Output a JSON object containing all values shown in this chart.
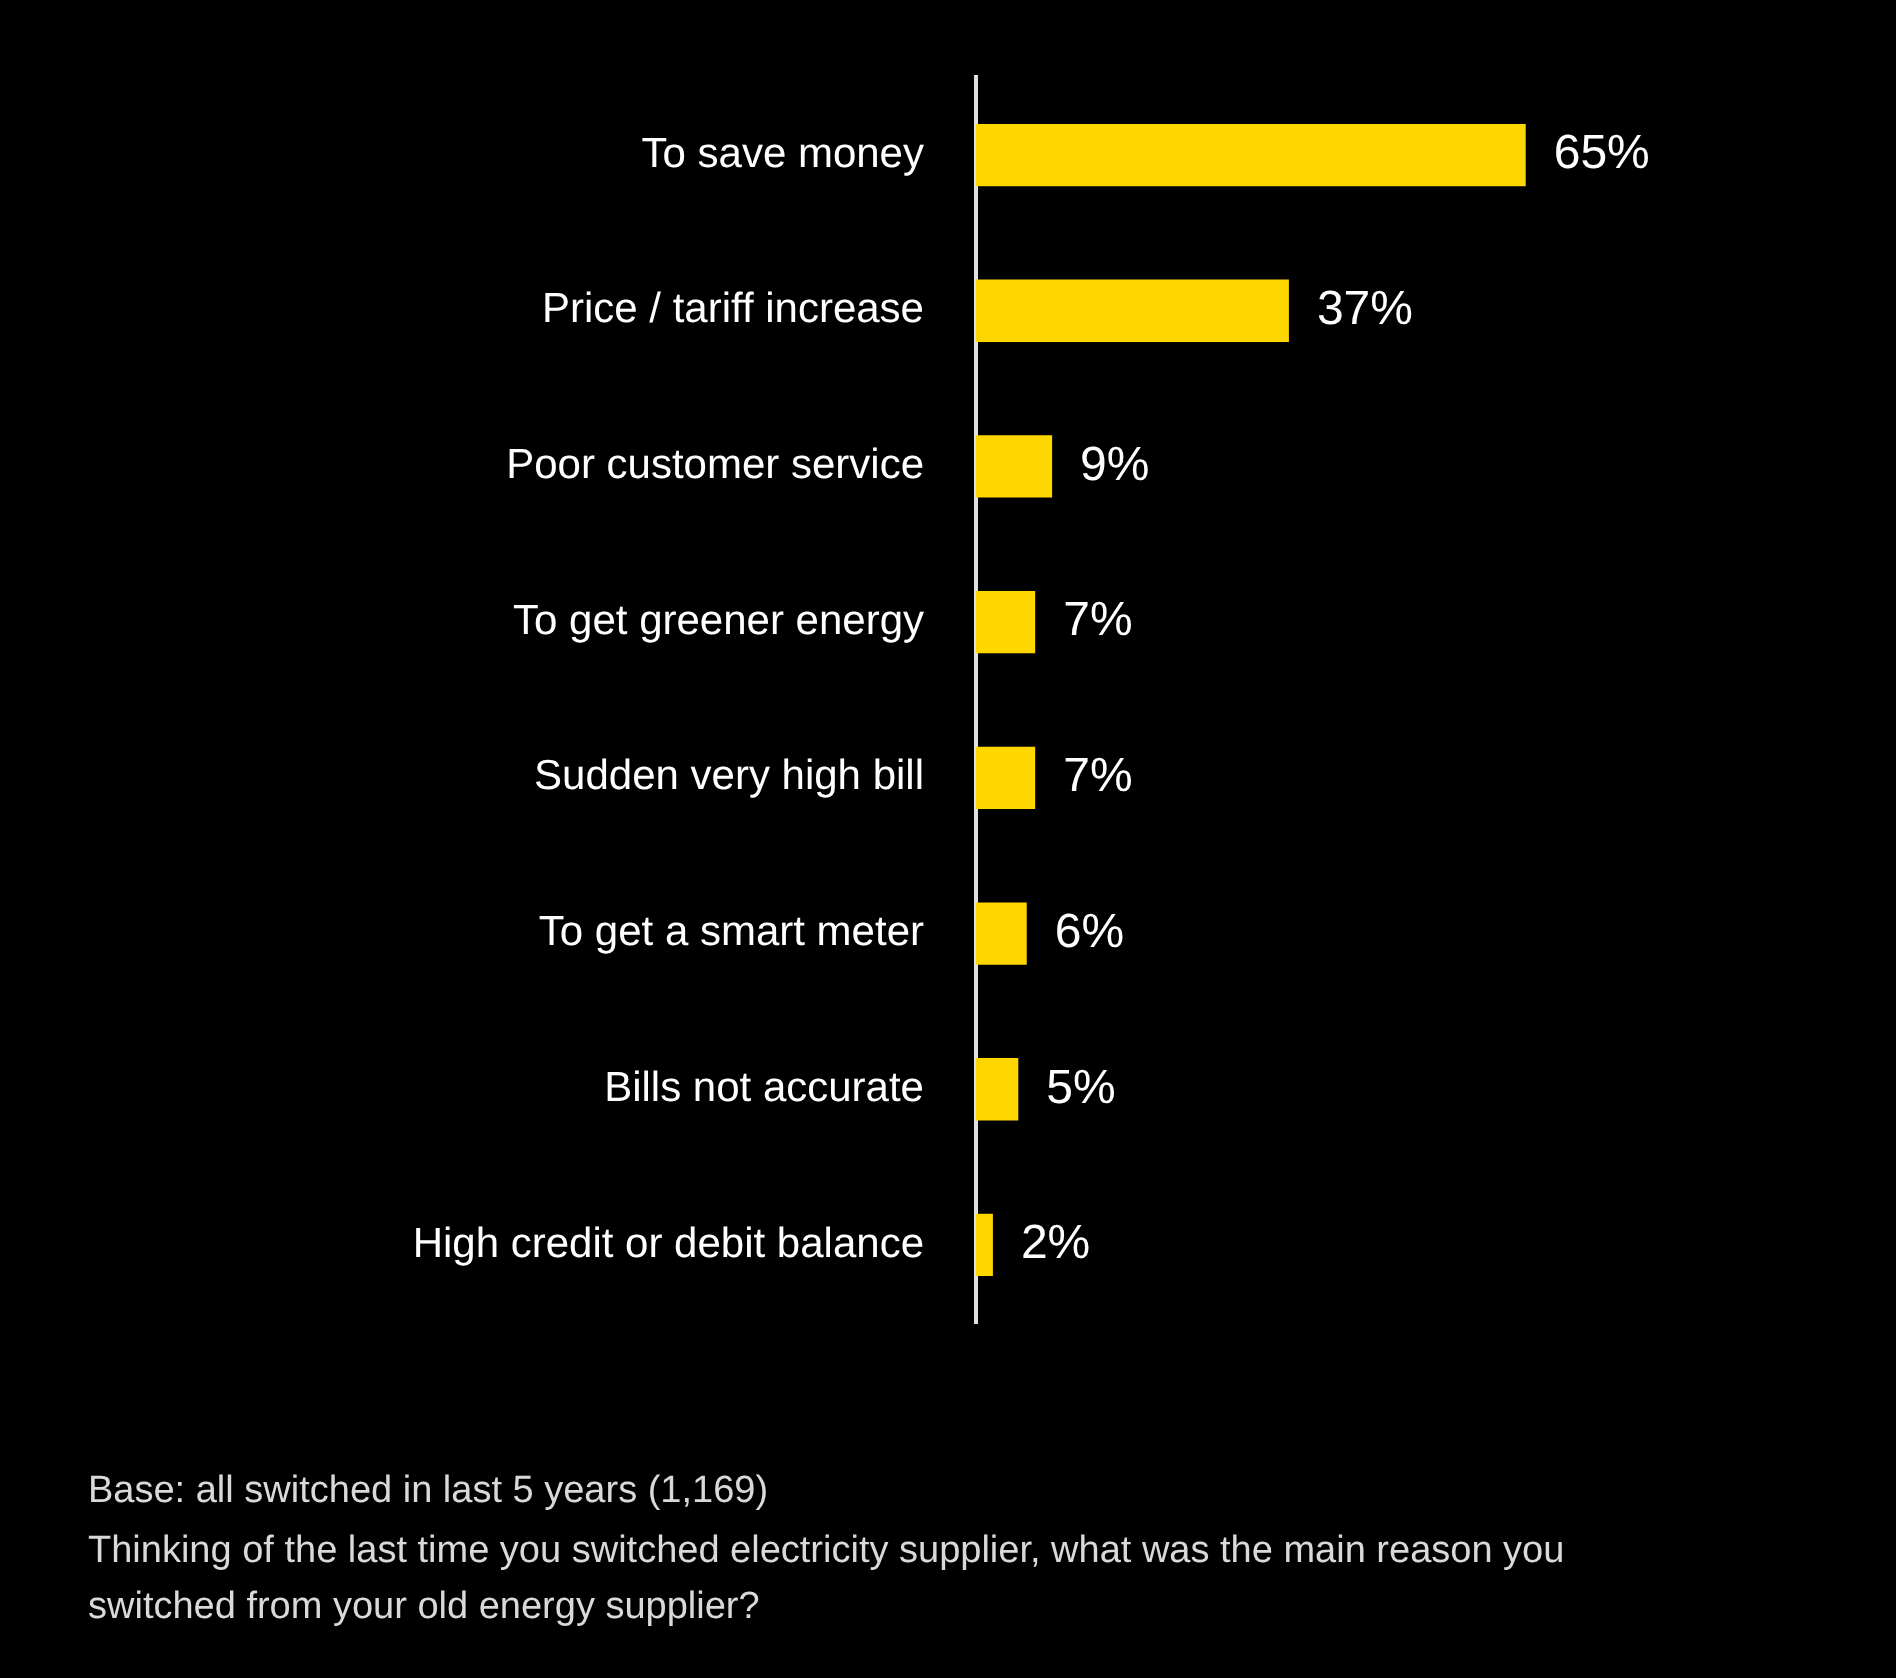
{
  "chart_data": {
    "type": "bar",
    "orientation": "horizontal",
    "categories": [
      "To save money",
      "Price / tariff increase",
      "Poor customer service",
      "To get greener energy",
      "Sudden very high bill",
      "To get a smart meter",
      "Bills not accurate",
      "High credit or debit balance"
    ],
    "values": [
      65,
      37,
      9,
      7,
      7,
      6,
      5,
      2
    ],
    "color": "#ffd700",
    "value_labels": [
      "65%",
      "37%",
      "9%",
      "7%",
      "7%",
      "6%",
      "5%",
      "2%"
    ],
    "legend": false,
    "annotations": [
      "Base: all switched in last 5 years (1,169)",
      "Thinking of the last time you switched electricity supplier, what was the main reason you switched from your old energy supplier?"
    ]
  }
}
